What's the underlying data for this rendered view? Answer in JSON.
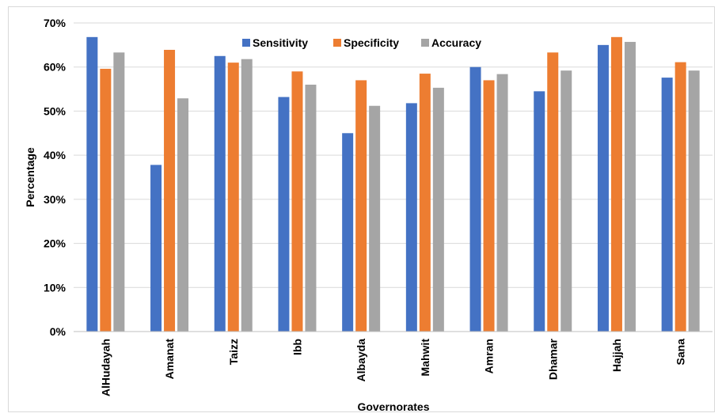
{
  "chart_data": {
    "type": "bar",
    "categories": [
      "AlHudayah",
      "Amanat",
      "Taizz",
      "Ibb",
      "Albayda",
      "Mahwit",
      "Amran",
      "Dhamar",
      "Hajjah",
      "Sana"
    ],
    "series": [
      {
        "name": "Sensitivity",
        "color": "#4472c4",
        "values": [
          66.8,
          37.8,
          62.5,
          53.2,
          45.0,
          51.8,
          60.0,
          54.5,
          65.0,
          57.6
        ]
      },
      {
        "name": "Specificity",
        "color": "#ed7d31",
        "values": [
          59.6,
          63.9,
          61.0,
          59.0,
          57.0,
          58.5,
          57.0,
          63.3,
          66.8,
          61.1
        ]
      },
      {
        "name": "Accuracy",
        "color": "#a5a5a5",
        "values": [
          63.3,
          52.9,
          61.8,
          56.0,
          51.2,
          55.3,
          58.4,
          59.2,
          65.7,
          59.2
        ]
      }
    ],
    "xlabel": "Governorates",
    "ylabel": "Percentage",
    "ylim": [
      0,
      70
    ],
    "yticks": [
      "0%",
      "10%",
      "20%",
      "30%",
      "40%",
      "50%",
      "60%",
      "70%"
    ],
    "grid": true,
    "legend": "top"
  }
}
